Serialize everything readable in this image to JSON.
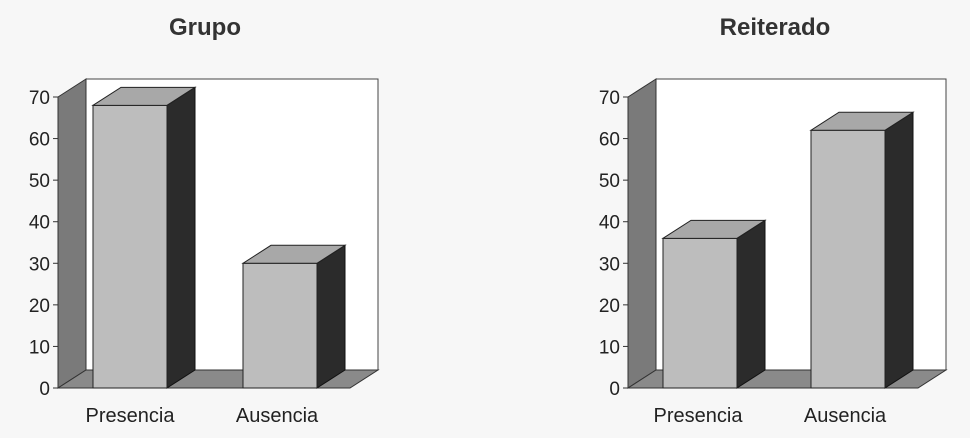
{
  "chart_data": [
    {
      "type": "bar",
      "title": "Grupo",
      "categories": [
        "Presencia",
        "Ausencia"
      ],
      "values": [
        68,
        30
      ],
      "ylim": [
        0,
        70
      ],
      "yticks": [
        0,
        10,
        20,
        30,
        40,
        50,
        60,
        70
      ],
      "style": "3d",
      "grid": false,
      "colors": {
        "front": "#bdbdbd",
        "top": "#a8a8a8",
        "side": "#2b2b2b",
        "wall": "#7a7a7a"
      }
    },
    {
      "type": "bar",
      "title": "Reiterado",
      "categories": [
        "Presencia",
        "Ausencia"
      ],
      "values": [
        36,
        62
      ],
      "ylim": [
        0,
        70
      ],
      "yticks": [
        0,
        10,
        20,
        30,
        40,
        50,
        60,
        70
      ],
      "style": "3d",
      "grid": false,
      "colors": {
        "front": "#bdbdbd",
        "top": "#a8a8a8",
        "side": "#2b2b2b",
        "wall": "#7a7a7a"
      }
    }
  ]
}
